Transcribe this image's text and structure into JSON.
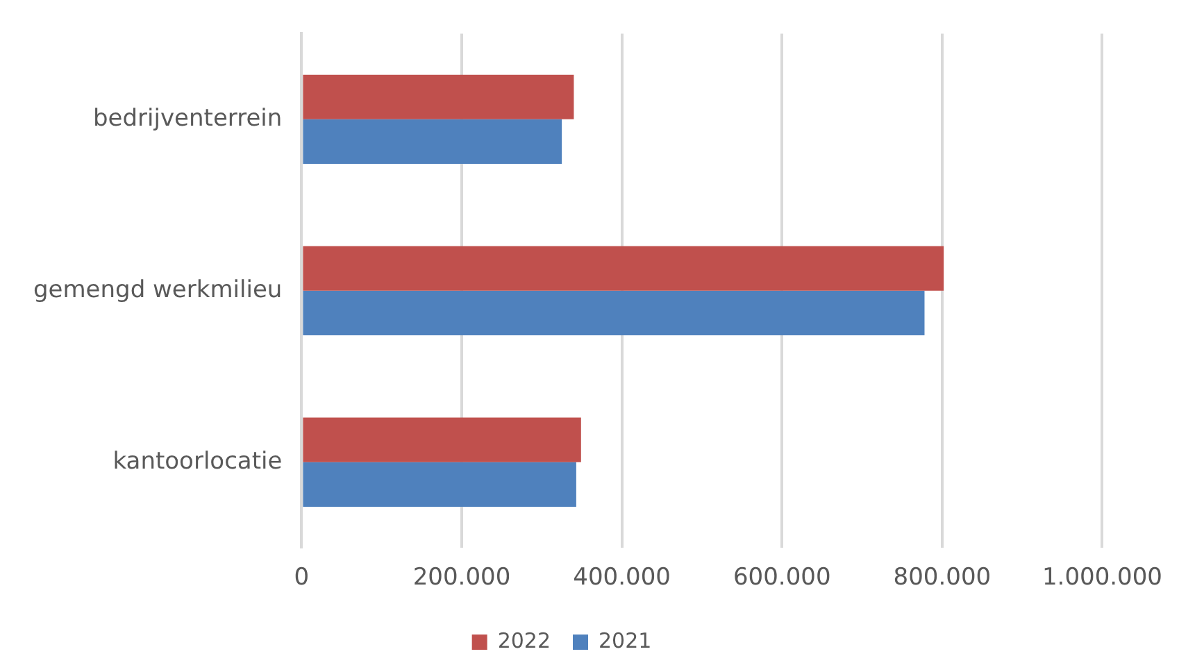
{
  "chart_data": {
    "type": "bar",
    "orientation": "horizontal",
    "categories": [
      "bedrijventerrein",
      "gemengd werkmilieu",
      "kantoorlocatie"
    ],
    "series": [
      {
        "name": "2022",
        "color": "#c0504d",
        "values": [
          340000,
          802000,
          349000
        ]
      },
      {
        "name": "2021",
        "color": "#4f81bd",
        "values": [
          325000,
          778000,
          343000
        ]
      }
    ],
    "xlim": [
      0,
      1000000
    ],
    "xticks": [
      {
        "value": 0,
        "label": "0"
      },
      {
        "value": 200000,
        "label": "200.000"
      },
      {
        "value": 400000,
        "label": "400.000"
      },
      {
        "value": 600000,
        "label": "600.000"
      },
      {
        "value": 800000,
        "label": "800.000"
      },
      {
        "value": 1000000,
        "label": "1.000.000"
      }
    ],
    "grid": "x",
    "legend": "bottom"
  }
}
